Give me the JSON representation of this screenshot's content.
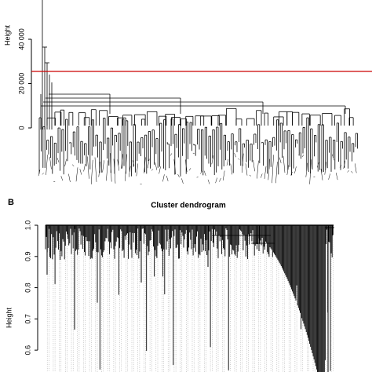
{
  "chart_data": [
    {
      "type": "dendrogram",
      "y_label": "Height",
      "ylim": [
        0,
        57000
      ],
      "yticks": [
        0,
        {
          "value": 20000,
          "label": "20 000"
        },
        {
          "value": 40000,
          "label": "40 000"
        }
      ],
      "cut_height": 25500,
      "cut_color": "#cc0000"
    },
    {
      "type": "dendrogram",
      "panel_label": "B",
      "title": "Cluster dendrogram",
      "y_label": "Height",
      "ylim": [
        0.53,
        1.0
      ],
      "yticks": [
        {
          "value": 0.6,
          "label": "0.6"
        },
        {
          "value": 0.7,
          "label": "0.7"
        },
        {
          "value": 0.8,
          "label": "0.8"
        },
        {
          "value": 0.9,
          "label": "0.9"
        },
        {
          "value": 1.0,
          "label": "1.0"
        }
      ]
    }
  ]
}
